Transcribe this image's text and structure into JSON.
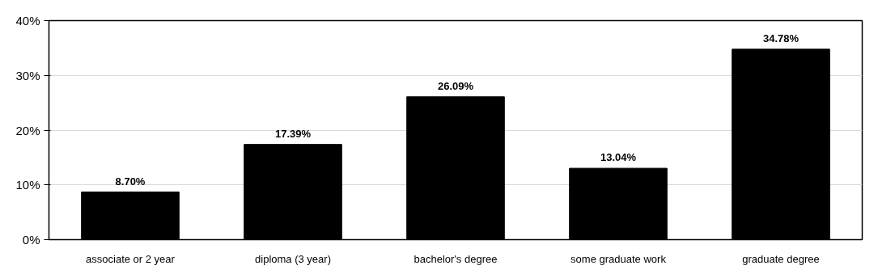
{
  "chart_data": {
    "type": "bar",
    "categories": [
      "associate or 2 year",
      "diploma (3 year)",
      "bachelor's degree",
      "some graduate work",
      "graduate degree"
    ],
    "values": [
      8.7,
      17.39,
      26.09,
      13.04,
      34.78
    ],
    "color": "#000000",
    "value_labels": [
      "8.70%",
      "17.39%",
      "26.09%",
      "13.04%",
      "34.78%"
    ],
    "ylim": [
      0,
      40
    ],
    "yticks": [
      {
        "value": 0,
        "label": "0%"
      },
      {
        "value": 10,
        "label": "10%"
      },
      {
        "value": 20,
        "label": "20%"
      },
      {
        "value": 30,
        "label": "30%"
      },
      {
        "value": 40,
        "label": "40%"
      }
    ],
    "grid": "y"
  }
}
